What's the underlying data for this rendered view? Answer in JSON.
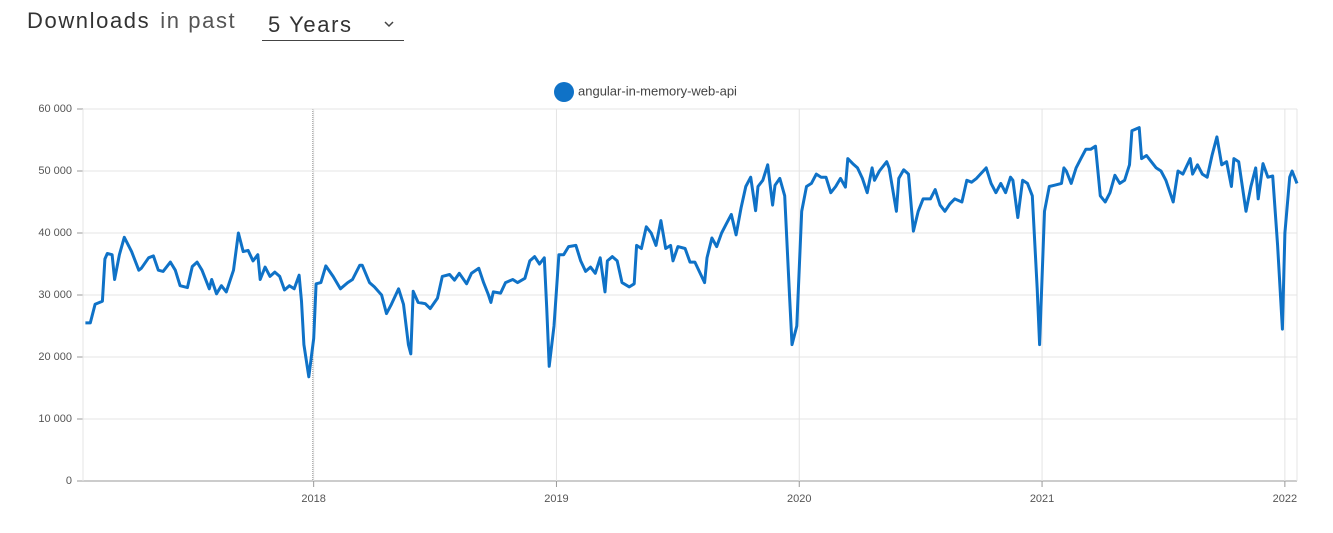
{
  "header": {
    "title": "Downloads",
    "prefix": "in past",
    "period": "5 Years"
  },
  "chart_data": {
    "type": "line",
    "xlim": [
      2017.05,
      2022.05
    ],
    "xticks": [
      2018,
      2019,
      2020,
      2021,
      2022
    ],
    "ylim": [
      0,
      60000
    ],
    "yticks": [
      0,
      {
        "value": 10000,
        "label": "10 000"
      },
      {
        "value": 20000,
        "label": "20 000"
      },
      {
        "value": 30000,
        "label": "30 000"
      },
      {
        "value": 40000,
        "label": "40 000"
      },
      {
        "value": 50000,
        "label": "50 000"
      },
      {
        "value": 60000,
        "label": "60 000"
      }
    ],
    "grid": true,
    "legend": "top",
    "x": [
      2017.06,
      2017.08,
      2017.1,
      2017.13,
      2017.14,
      2017.15,
      2017.17,
      2017.18,
      2017.2,
      2017.22,
      2017.25,
      2017.28,
      2017.29,
      2017.32,
      2017.34,
      2017.36,
      2017.38,
      2017.41,
      2017.43,
      2017.45,
      2017.48,
      2017.5,
      2017.52,
      2017.54,
      2017.57,
      2017.58,
      2017.6,
      2017.62,
      2017.64,
      2017.67,
      2017.69,
      2017.71,
      2017.73,
      2017.75,
      2017.77,
      2017.78,
      2017.8,
      2017.82,
      2017.84,
      2017.86,
      2017.88,
      2017.9,
      2017.92,
      2017.94,
      2017.95,
      2017.96,
      2017.98,
      2018.0,
      2018.01,
      2018.03,
      2018.05,
      2018.08,
      2018.11,
      2018.14,
      2018.16,
      2018.19,
      2018.2,
      2018.23,
      2018.25,
      2018.28,
      2018.3,
      2018.32,
      2018.35,
      2018.37,
      2018.39,
      2018.4,
      2018.41,
      2018.43,
      2018.46,
      2018.48,
      2018.51,
      2018.53,
      2018.56,
      2018.58,
      2018.6,
      2018.63,
      2018.65,
      2018.68,
      2018.7,
      2018.72,
      2018.73,
      2018.74,
      2018.77,
      2018.79,
      2018.82,
      2018.84,
      2018.87,
      2018.89,
      2018.91,
      2018.93,
      2018.95,
      2018.96,
      2018.97,
      2018.99,
      2019.01,
      2019.03,
      2019.05,
      2019.08,
      2019.1,
      2019.12,
      2019.14,
      2019.16,
      2019.18,
      2019.2,
      2019.21,
      2019.23,
      2019.25,
      2019.27,
      2019.3,
      2019.32,
      2019.33,
      2019.35,
      2019.37,
      2019.39,
      2019.41,
      2019.43,
      2019.45,
      2019.47,
      2019.48,
      2019.5,
      2019.53,
      2019.55,
      2019.57,
      2019.61,
      2019.62,
      2019.64,
      2019.66,
      2019.68,
      2019.7,
      2019.72,
      2019.74,
      2019.76,
      2019.78,
      2019.8,
      2019.82,
      2019.83,
      2019.85,
      2019.87,
      2019.89,
      2019.9,
      2019.92,
      2019.94,
      2019.96,
      2019.97,
      2019.99,
      2020.01,
      2020.03,
      2020.05,
      2020.07,
      2020.09,
      2020.11,
      2020.13,
      2020.15,
      2020.17,
      2020.19,
      2020.2,
      2020.22,
      2020.24,
      2020.26,
      2020.28,
      2020.3,
      2020.31,
      2020.33,
      2020.36,
      2020.37,
      2020.4,
      2020.41,
      2020.43,
      2020.45,
      2020.47,
      2020.49,
      2020.51,
      2020.54,
      2020.56,
      2020.58,
      2020.6,
      2020.62,
      2020.64,
      2020.67,
      2020.69,
      2020.71,
      2020.73,
      2020.77,
      2020.79,
      2020.81,
      2020.83,
      2020.85,
      2020.87,
      2020.88,
      2020.9,
      2020.92,
      2020.94,
      2020.96,
      2020.98,
      2020.99,
      2021.01,
      2021.03,
      2021.05,
      2021.08,
      2021.09,
      2021.1,
      2021.12,
      2021.14,
      2021.16,
      2021.18,
      2021.2,
      2021.22,
      2021.24,
      2021.26,
      2021.28,
      2021.3,
      2021.32,
      2021.34,
      2021.36,
      2021.37,
      2021.4,
      2021.41,
      2021.43,
      2021.45,
      2021.47,
      2021.49,
      2021.51,
      2021.54,
      2021.56,
      2021.58,
      2021.61,
      2021.62,
      2021.64,
      2021.66,
      2021.68,
      2021.7,
      2021.72,
      2021.74,
      2021.76,
      2021.78,
      2021.79,
      2021.81,
      2021.84,
      2021.86,
      2021.88,
      2021.89,
      2021.91,
      2021.93,
      2021.95,
      2021.97,
      2021.99,
      2022.0,
      2022.02,
      2022.03,
      2022.05
    ],
    "series": [
      {
        "name": "angular-in-memory-web-api",
        "color": "#0f72c7",
        "values": [
          25500,
          25500,
          28500,
          29000,
          35800,
          36700,
          36500,
          32500,
          36500,
          39300,
          37000,
          34000,
          34300,
          36000,
          36300,
          34000,
          33800,
          35300,
          34000,
          31500,
          31200,
          34600,
          35300,
          34000,
          31000,
          32500,
          30200,
          31500,
          30500,
          34000,
          40000,
          37000,
          37200,
          35500,
          36500,
          32500,
          34500,
          33000,
          33700,
          33000,
          30800,
          31500,
          31000,
          33200,
          29000,
          22000,
          16800,
          23000,
          31800,
          32000,
          34700,
          33000,
          31000,
          32000,
          32500,
          34800,
          34800,
          32000,
          31300,
          30000,
          27000,
          28500,
          31000,
          28500,
          22000,
          20500,
          30600,
          28800,
          28600,
          27800,
          29500,
          33000,
          33300,
          32400,
          33500,
          31800,
          33500,
          34300,
          32000,
          30000,
          28800,
          30500,
          30300,
          32000,
          32500,
          32000,
          32700,
          35500,
          36200,
          35000,
          36000,
          28000,
          18500,
          25000,
          36500,
          36500,
          37800,
          38000,
          35500,
          33800,
          34500,
          33500,
          36000,
          30500,
          35500,
          36200,
          35500,
          32000,
          31300,
          31800,
          38000,
          37500,
          41000,
          40000,
          38000,
          42000,
          37500,
          38000,
          35500,
          37800,
          37500,
          35300,
          35300,
          32000,
          36000,
          39200,
          37800,
          40000,
          41500,
          43000,
          39700,
          44000,
          47500,
          49000,
          43600,
          47500,
          48500,
          51000,
          44500,
          47700,
          48800,
          46000,
          30000,
          22000,
          25000,
          43500,
          47500,
          48000,
          49500,
          49000,
          49000,
          46500,
          47500,
          48800,
          47400,
          52000,
          51200,
          50500,
          48800,
          46500,
          50500,
          48500,
          50000,
          51500,
          50500,
          43500,
          48800,
          50200,
          49500,
          40300,
          43500,
          45500,
          45500,
          47000,
          44500,
          43500,
          44700,
          45500,
          45000,
          48500,
          48200,
          48800,
          50500,
          48000,
          46500,
          48000,
          46500,
          49000,
          48500,
          42500,
          48500,
          48000,
          46000,
          31000,
          22000,
          43500,
          47500,
          47700,
          48000,
          50500,
          50000,
          48000,
          50500,
          52000,
          53500,
          53500,
          54000,
          46000,
          45000,
          46500,
          49300,
          48000,
          48500,
          51000,
          56500,
          57000,
          52000,
          52500,
          51500,
          50500,
          50000,
          48500,
          45000,
          50000,
          49500,
          52000,
          49500,
          51000,
          49500,
          49000,
          52500,
          55500,
          51000,
          51500,
          47500,
          52000,
          51500,
          43500,
          47500,
          50500,
          45500,
          51200,
          49000,
          49200,
          38000,
          24500,
          40000,
          49000,
          50000,
          48000
        ]
      }
    ]
  }
}
